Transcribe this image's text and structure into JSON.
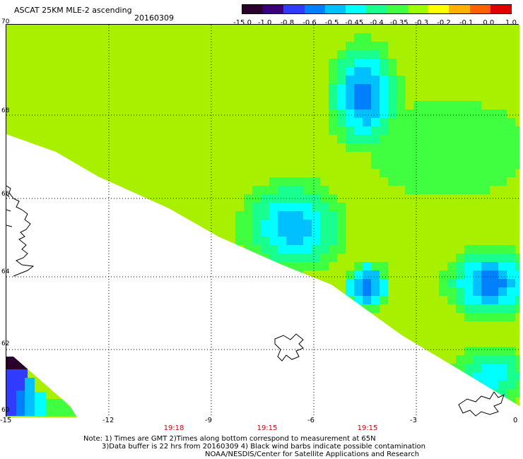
{
  "header": {
    "title": "ASCAT 25KM MLE-2 ascending",
    "date": "20160309"
  },
  "colorbar": {
    "labels": [
      "-15.0",
      "-1.0",
      "-0.8",
      "-0.6",
      "-0.5",
      "-0.45",
      "-0.4",
      "-0.35",
      "-0.3",
      "-0.2",
      "-0.1",
      "0.0",
      "1.0"
    ],
    "colors": [
      "#2b002b",
      "#3a0078",
      "#2f3bff",
      "#0080ff",
      "#00c0ff",
      "#00ffff",
      "#18ff90",
      "#40ff40",
      "#9cff00",
      "#ffff00",
      "#ffb000",
      "#ff6000",
      "#e00000"
    ]
  },
  "axes": {
    "x_ticks": [
      "-15",
      "-12",
      "-9",
      "-6",
      "-3",
      "0"
    ],
    "y_ticks": [
      "70",
      "68",
      "66",
      "64",
      "62",
      "60"
    ]
  },
  "times": [
    "19:18",
    "19:15",
    "19:15"
  ],
  "notes": {
    "line1": "Note: 1) Times are GMT 2)Times along bottom correspond to measurement at 65N",
    "line2": "3)Data buffer is 22 hrs from 20160309 4) Black wind barbs indicate possible contamination",
    "line3": "NOAA/NESDIS/Center for Satellite Applications and Research"
  }
}
